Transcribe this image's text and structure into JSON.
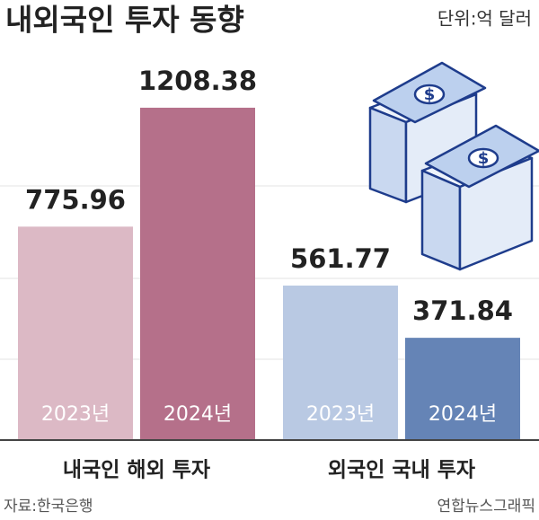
{
  "chart_data": {
    "type": "grouped-bar",
    "title": "내외국인 투자 동향",
    "subtitle": "단위:억 달러",
    "categories": [
      "내국인 해외 투자",
      "외국인 국내 투자"
    ],
    "series": [
      {
        "name": "2023년",
        "colors": [
          "#dcb9c5",
          "#b9c9e3"
        ],
        "values": [
          775.96,
          561.77
        ]
      },
      {
        "name": "2024년",
        "colors": [
          "#b5708a",
          "#6584b6"
        ],
        "values": [
          1208.38,
          371.84
        ]
      }
    ],
    "ylim": [
      0,
      1600
    ],
    "source": "자료:한국은행",
    "credit": "연합뉴스그래픽"
  }
}
